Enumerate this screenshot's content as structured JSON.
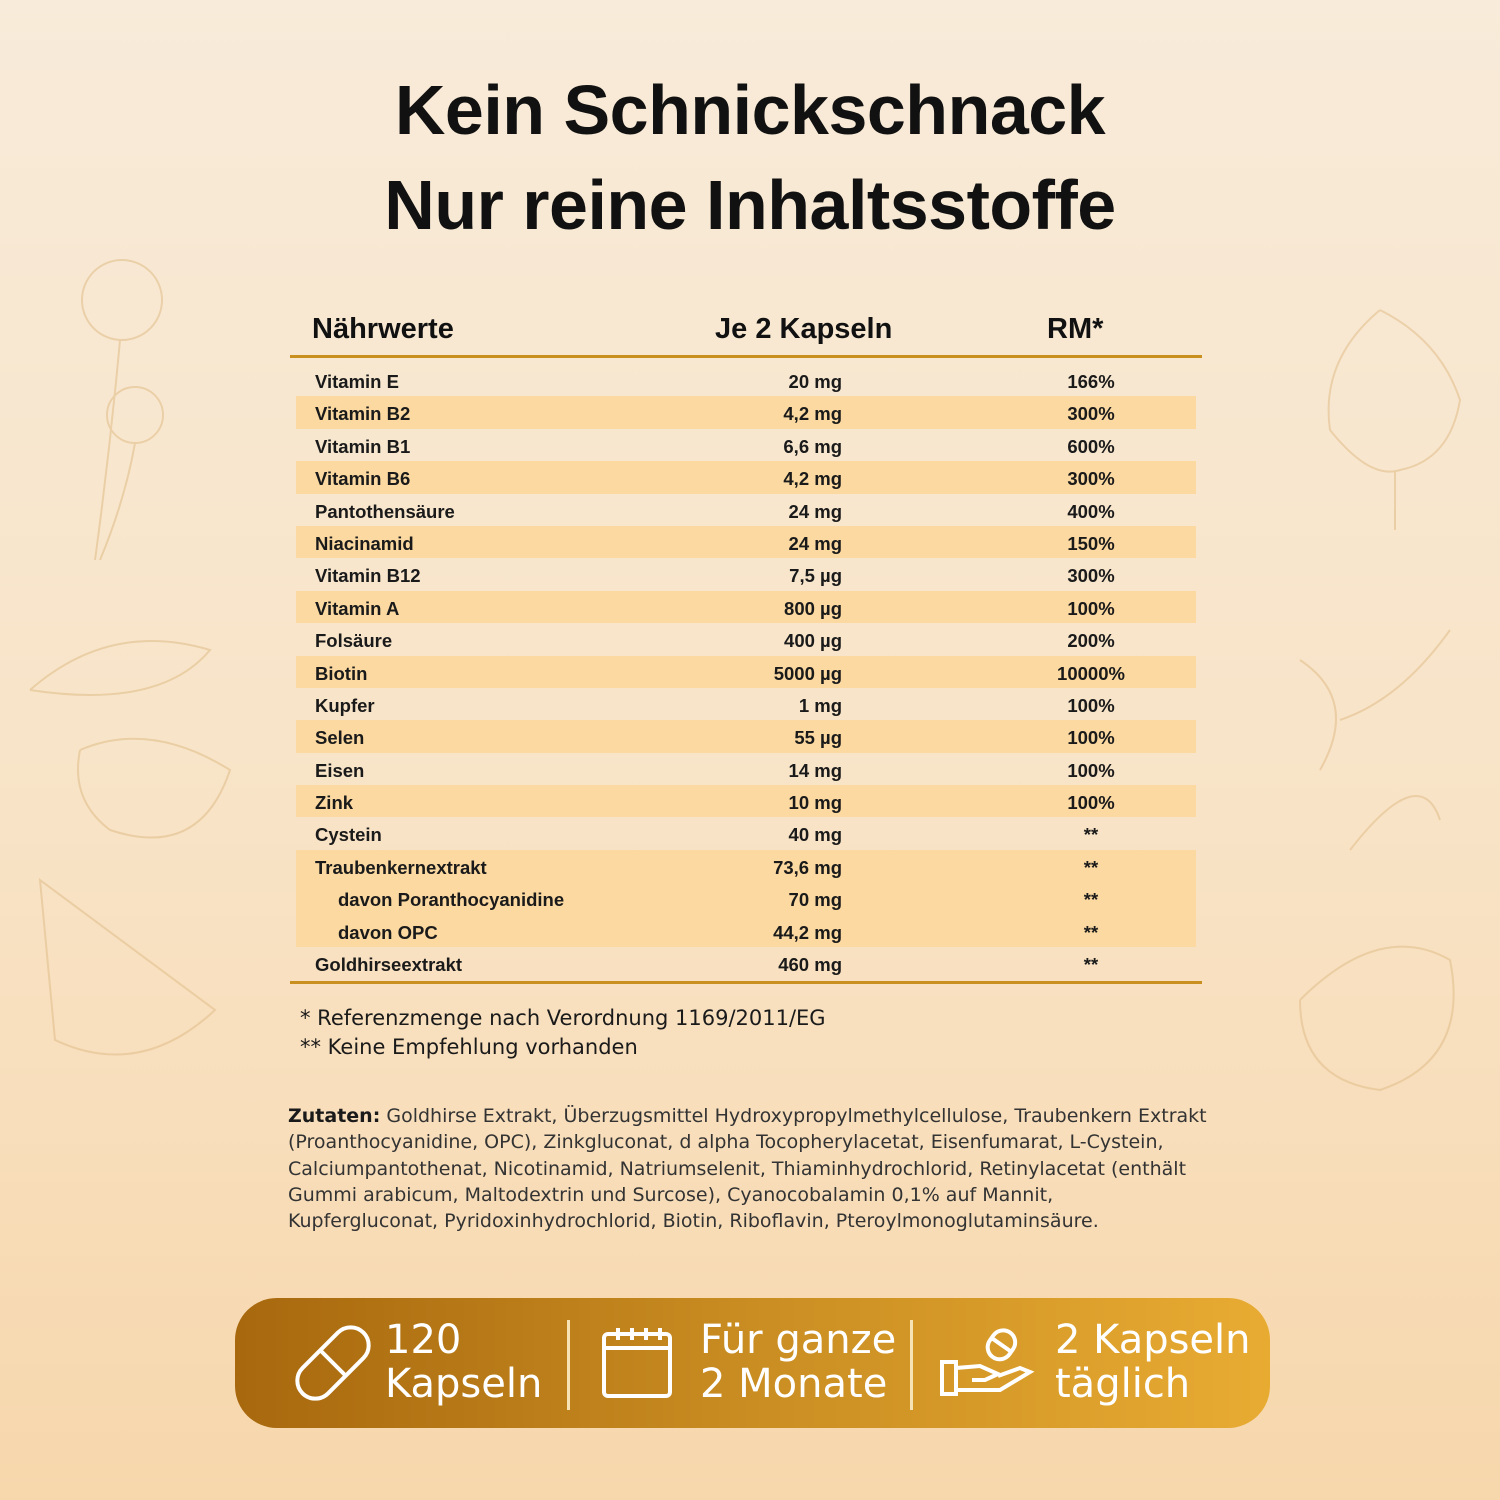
{
  "header": {
    "title_lines": [
      "Kein Schnickschnack",
      "Nur reine Inhaltsstoffe"
    ]
  },
  "table": {
    "columns": [
      "Nährwerte",
      "Je 2 Kapseln",
      "RM*"
    ],
    "rows": [
      [
        "Vitamin E",
        "20 mg",
        "166%"
      ],
      [
        "Vitamin B2",
        "4,2 mg",
        "300%"
      ],
      [
        "Vitamin B1",
        "6,6 mg",
        "600%"
      ],
      [
        "Vitamin B6",
        "4,2 mg",
        "300%"
      ],
      [
        "Pantothensäure",
        "24 mg",
        "400%"
      ],
      [
        "Niacinamid",
        "24 mg",
        "150%"
      ],
      [
        "Vitamin B12",
        "7,5 µg",
        "300%"
      ],
      [
        "Vitamin A",
        "800 µg",
        "100%"
      ],
      [
        "Folsäure",
        "400 µg",
        "200%"
      ],
      [
        "Biotin",
        "5000 µg",
        "10000%"
      ],
      [
        "Kupfer",
        "1 mg",
        "100%"
      ],
      [
        "Selen",
        "55 µg",
        "100%"
      ],
      [
        "Eisen",
        "14 mg",
        "100%"
      ],
      [
        "Zink",
        "10 mg",
        "100%"
      ],
      [
        "Cystein",
        "40 mg",
        "**"
      ],
      [
        "Traubenkernextrakt",
        "73,6 mg",
        "**"
      ],
      [
        "davon Poranthocyanidine",
        "70 mg",
        "**"
      ],
      [
        "davon OPC",
        "44,2 mg",
        "**"
      ],
      [
        "Goldhirseextrakt",
        "460 mg",
        "**"
      ]
    ]
  },
  "footnotes": [
    "* Referenzmenge nach Verordnung 1169/2011/EG",
    "** Keine Empfehlung vorhanden"
  ],
  "ingredients": {
    "label": "Zutaten:",
    "text": "Goldhirse Extrakt, Überzugsmittel Hydroxypropylmethylcellulose, Traubenkern Extrakt  (Proanthocyanidine, OPC), Zinkgluconat, d alpha Tocopherylacetat, Eisenfumarat, L-Cystein, Calciumpantothenat, Nicotinamid, Natriumselenit, Thiaminhydrochlorid, Retinylacetat (enthält Gummi arabicum, Maltodextrin und Surcose), Cyanocobalamin 0,1% auf Mannit,  Kupfergluconat, Pyridoxinhydrochlorid, Biotin, Riboflavin, Pteroylmonoglutaminsäure."
  },
  "banner": [
    {
      "lines": [
        "120",
        "Kapseln"
      ]
    },
    {
      "lines": [
        "Für ganze",
        "2 Monate"
      ]
    },
    {
      "lines": [
        "2 Kapseln",
        "täglich"
      ]
    }
  ]
}
